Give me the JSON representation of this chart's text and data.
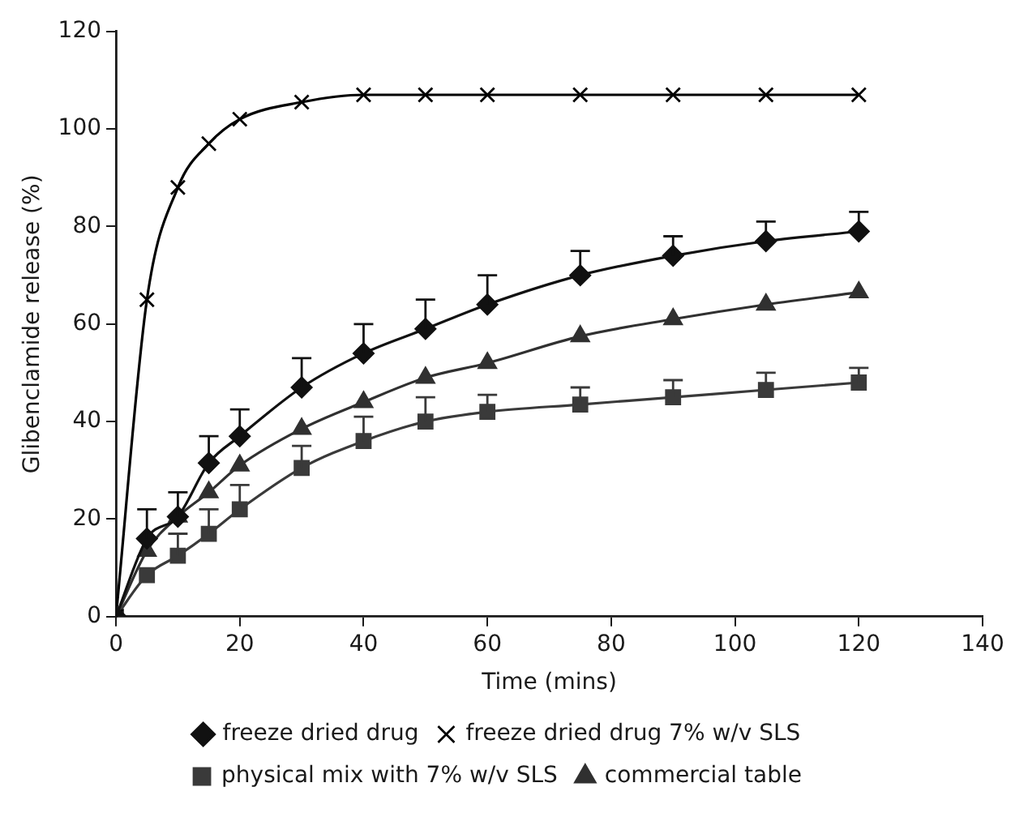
{
  "chart_data": {
    "type": "line",
    "xlabel": "Time (mins)",
    "ylabel": "Glibenclamide release (%)",
    "x": [
      0,
      5,
      10,
      15,
      20,
      30,
      40,
      50,
      60,
      75,
      90,
      105,
      120
    ],
    "series": [
      {
        "name": "freeze dried drug",
        "color": "#111111",
        "marker": "diamond",
        "values": [
          0,
          16,
          20.5,
          31.5,
          37,
          47,
          54,
          59,
          64,
          70,
          74,
          77,
          79
        ],
        "errors": [
          null,
          [
            16,
            22
          ],
          [
            20.5,
            25.5
          ],
          [
            31.5,
            37
          ],
          [
            37,
            42.5
          ],
          [
            47,
            53
          ],
          [
            54,
            60
          ],
          [
            59,
            65
          ],
          [
            64,
            70
          ],
          [
            70,
            75
          ],
          [
            74,
            78
          ],
          [
            77,
            81
          ],
          [
            79,
            83
          ]
        ]
      },
      {
        "name": "freeze dried drug 7% w/v SLS",
        "color": "#000000",
        "marker": "cross",
        "values": [
          0,
          65,
          88,
          97,
          102,
          105.5,
          107,
          107,
          107,
          107,
          107,
          107,
          107
        ]
      },
      {
        "name": "physical mix with 7% w/v SLS",
        "color": "#3a3a3a",
        "marker": "square",
        "values": [
          0,
          8.5,
          12.5,
          17,
          22,
          30.5,
          36,
          40,
          42,
          43.5,
          45,
          46.5,
          48
        ],
        "errors": [
          null,
          null,
          [
            12.5,
            17
          ],
          [
            17,
            22
          ],
          [
            22,
            27
          ],
          [
            30.5,
            35
          ],
          [
            36,
            41
          ],
          [
            40,
            45
          ],
          [
            42,
            45.5
          ],
          [
            43.5,
            47
          ],
          [
            45,
            48.5
          ],
          [
            46.5,
            50
          ],
          [
            48,
            51
          ]
        ]
      },
      {
        "name": "commercial table",
        "color": "#303030",
        "marker": "triangle",
        "values": [
          0,
          13.5,
          20.5,
          25.5,
          31,
          38.5,
          44,
          49,
          52,
          57.5,
          61,
          64,
          66.5
        ]
      }
    ],
    "xlim": [
      0,
      140
    ],
    "xticks": [
      0,
      20,
      40,
      60,
      80,
      100,
      120,
      140
    ],
    "ylim": [
      0,
      120
    ],
    "yticks": [
      0,
      20,
      40,
      60,
      80,
      100,
      120
    ],
    "grid": false,
    "legend": "bottom",
    "line_style": "solid"
  }
}
